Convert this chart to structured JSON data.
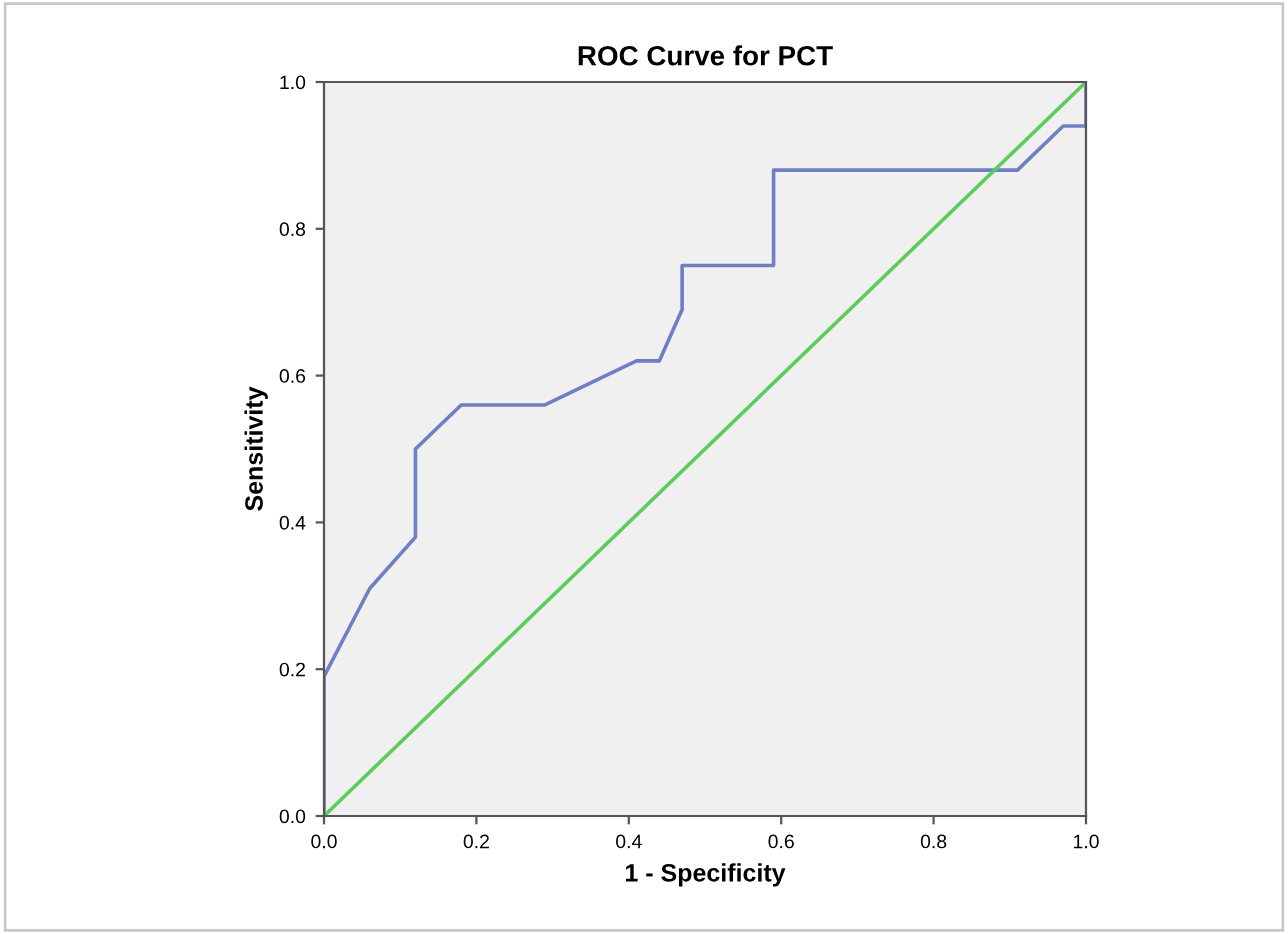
{
  "chart_data": {
    "type": "line",
    "title": "ROC Curve for PCT",
    "xlabel": "1 - Specificity",
    "ylabel": "Sensitivity",
    "series": [
      {
        "color": "#6f7fc4",
        "x": [
          0,
          0,
          0.06,
          0.12,
          0.12,
          0.18,
          0.29,
          0.41,
          0.44,
          0.47,
          0.47,
          0.59,
          0.59,
          0.91,
          0.97,
          1,
          1
        ],
        "values": [
          0,
          0.19,
          0.31,
          0.38,
          0.5,
          0.56,
          0.56,
          0.62,
          0.62,
          0.69,
          0.75,
          0.75,
          0.88,
          0.88,
          0.94,
          0.94,
          1
        ]
      },
      {
        "color": "#5ccc5c",
        "x": [
          0,
          1
        ],
        "values": [
          0,
          1
        ]
      }
    ],
    "xlim": [
      0,
      1
    ],
    "ylim": [
      0,
      1
    ],
    "xticks": [
      {
        "value": 0,
        "label": "0.0"
      },
      {
        "value": 0.2,
        "label": "0.2"
      },
      {
        "value": 0.4,
        "label": "0.4"
      },
      {
        "value": 0.6,
        "label": "0.6"
      },
      {
        "value": 0.8,
        "label": "0.8"
      },
      {
        "value": 1,
        "label": "1.0"
      }
    ],
    "yticks": [
      {
        "value": 0,
        "label": "0.0"
      },
      {
        "value": 0.2,
        "label": "0.2"
      },
      {
        "value": 0.4,
        "label": "0.4"
      },
      {
        "value": 0.6,
        "label": "0.6"
      },
      {
        "value": 0.8,
        "label": "0.8"
      },
      {
        "value": 1,
        "label": "1.0"
      }
    ],
    "grid": false,
    "legend": false
  }
}
